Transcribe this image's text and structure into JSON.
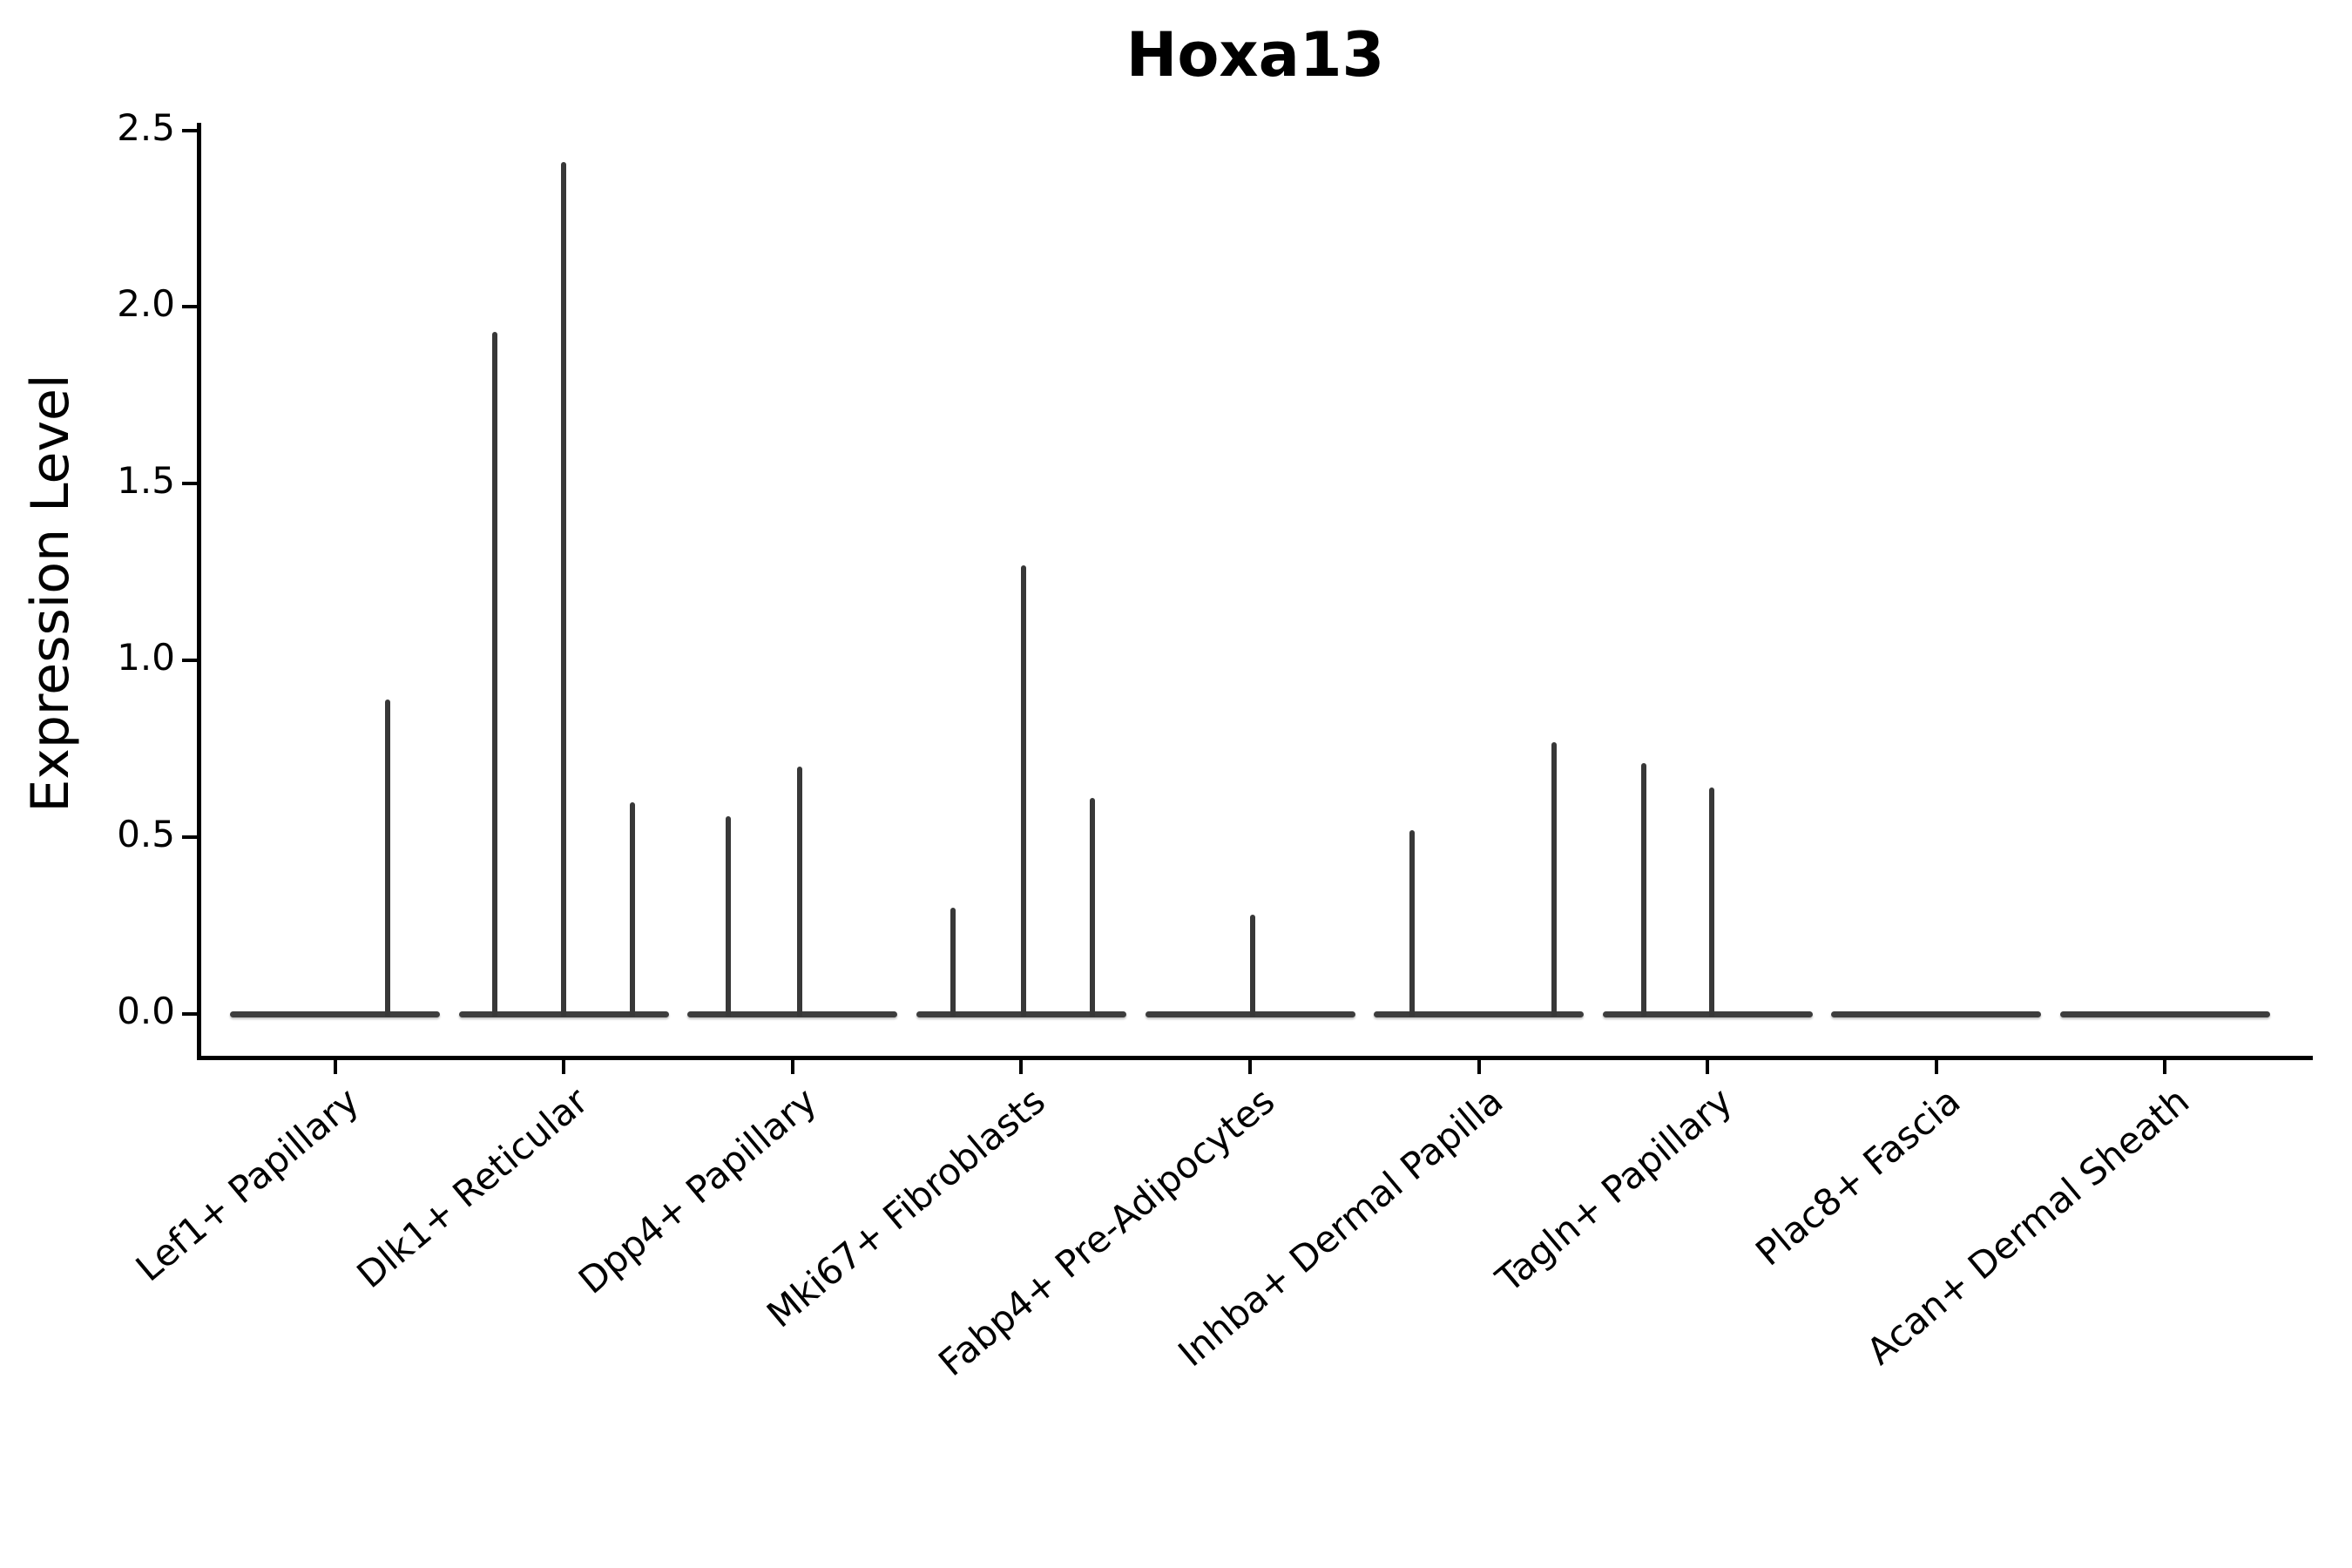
{
  "chart_data": {
    "type": "violin",
    "title": "Hoxa13",
    "ylabel": "Expression Level",
    "xlabel": "",
    "yticks": [
      "0.0",
      "0.5",
      "1.0",
      "1.5",
      "2.0",
      "2.5"
    ],
    "ylim": [
      -0.13,
      2.52
    ],
    "grid": false,
    "legend": null,
    "background": "#ffffff",
    "categories": [
      "Lef1+ Papillary",
      "Dlk1+ Reticular",
      "Dpp4+ Papillary",
      "Mki67+ Fibroblasts",
      "Fabp4+ Pre-Adipocytes",
      "Inhba+ Dermal Papilla",
      "Tagln+ Papillary",
      "Plac8+ Fascia",
      "Acan+ Dermal Sheath"
    ],
    "violins": [
      {
        "category": "Lef1+ Papillary",
        "baseline_value": 0,
        "spikes": [
          {
            "offset": 0.23,
            "max": 0.89
          }
        ]
      },
      {
        "category": "Dlk1+ Reticular",
        "baseline_value": 0,
        "spikes": [
          {
            "offset": -0.3,
            "max": 1.93
          },
          {
            "offset": 0.0,
            "max": 2.41
          },
          {
            "offset": 0.3,
            "max": 0.6
          }
        ]
      },
      {
        "category": "Dpp4+ Papillary",
        "baseline_value": 0,
        "spikes": [
          {
            "offset": -0.28,
            "max": 0.56
          },
          {
            "offset": 0.03,
            "max": 0.7
          }
        ]
      },
      {
        "category": "Mki67+ Fibroblasts",
        "baseline_value": 0,
        "spikes": [
          {
            "offset": -0.3,
            "max": 0.3
          },
          {
            "offset": 0.01,
            "max": 1.27
          },
          {
            "offset": 0.31,
            "max": 0.61
          }
        ]
      },
      {
        "category": "Fabp4+ Pre-Adipocytes",
        "baseline_value": 0,
        "spikes": [
          {
            "offset": 0.01,
            "max": 0.28
          }
        ]
      },
      {
        "category": "Inhba+ Dermal Papilla",
        "baseline_value": 0,
        "spikes": [
          {
            "offset": -0.29,
            "max": 0.52
          },
          {
            "offset": 0.33,
            "max": 0.77
          }
        ]
      },
      {
        "category": "Tagln+ Papillary",
        "baseline_value": 0,
        "spikes": [
          {
            "offset": -0.28,
            "max": 0.71
          },
          {
            "offset": 0.02,
            "max": 0.64
          }
        ]
      },
      {
        "category": "Plac8+ Fascia",
        "baseline_value": 0,
        "spikes": []
      },
      {
        "category": "Acan+ Dermal Sheath",
        "baseline_value": 0,
        "spikes": []
      }
    ],
    "base_half_width_frac": 0.46,
    "colors": {
      "violin": "#3a3a3a",
      "axis": "#000000",
      "text": "#000000",
      "background": "#ffffff"
    }
  }
}
